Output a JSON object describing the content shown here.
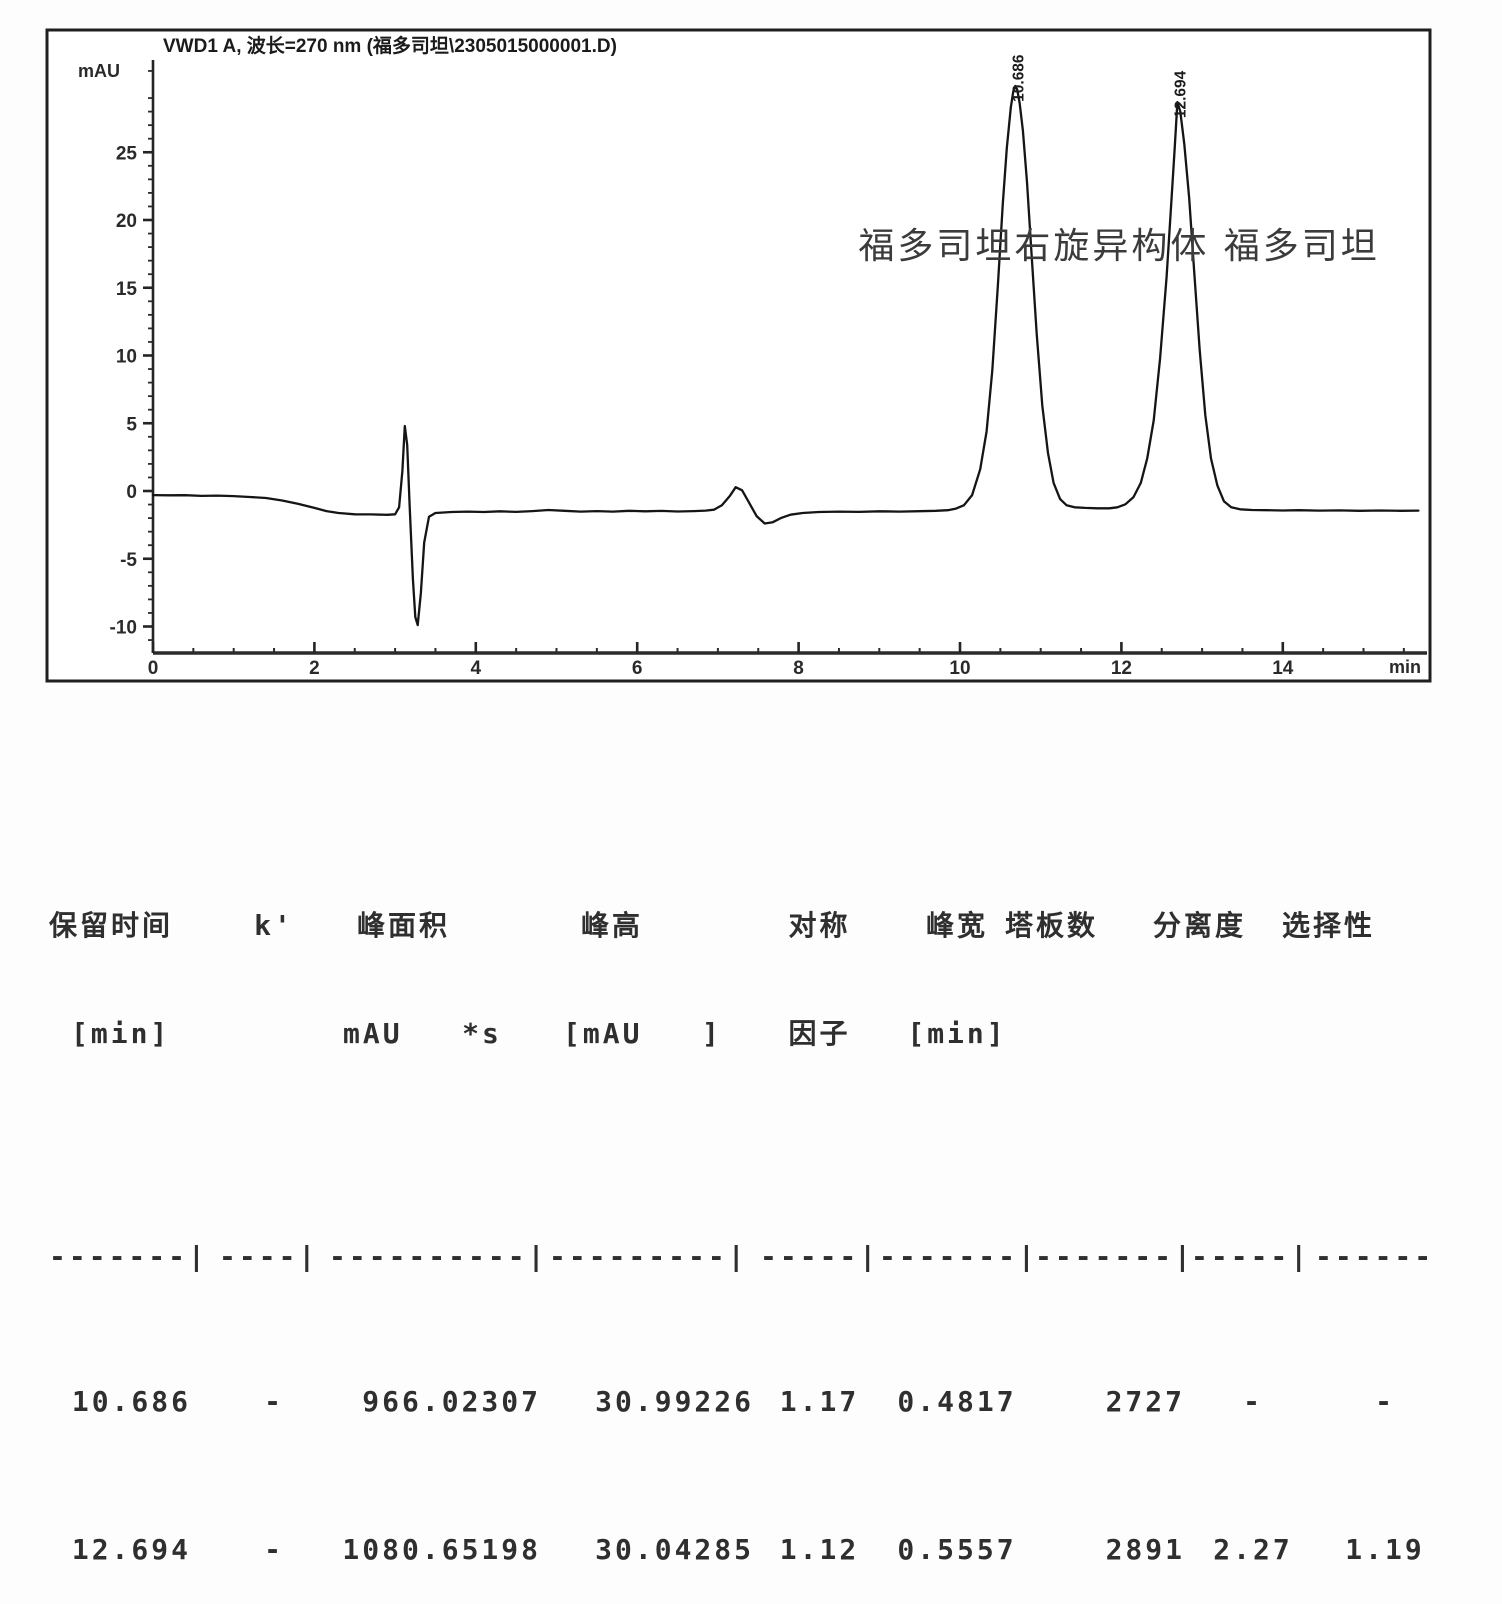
{
  "chart_data": {
    "type": "line",
    "title": "VWD1 A, 波长=270 nm (福多司坦\\2305015000001.D)",
    "ylabel": "mAU",
    "xlabel": "min",
    "xlim": [
      0,
      15.8
    ],
    "ylim": [
      -11.5,
      31.8
    ],
    "x_ticks": [
      0,
      2,
      4,
      6,
      8,
      10,
      12,
      14
    ],
    "y_ticks": [
      -10,
      -5,
      0,
      5,
      10,
      15,
      20,
      25
    ],
    "x_minor_step": 0.5,
    "y_minor_step": 1,
    "grid": "off",
    "annotations": [
      {
        "text": "福多司坦右旋异构体 福多司坦",
        "x": 8.74,
        "y": 17.2
      }
    ],
    "peaks": [
      {
        "label": "10.686",
        "rt": 10.686,
        "apex": 29.9
      },
      {
        "label": "12.694",
        "rt": 12.694,
        "apex": 28.7
      }
    ],
    "trace": [
      [
        0.0,
        -0.3
      ],
      [
        0.2,
        -0.32
      ],
      [
        0.4,
        -0.31
      ],
      [
        0.6,
        -0.36
      ],
      [
        0.8,
        -0.34
      ],
      [
        1.0,
        -0.38
      ],
      [
        1.2,
        -0.44
      ],
      [
        1.4,
        -0.52
      ],
      [
        1.6,
        -0.7
      ],
      [
        1.8,
        -0.95
      ],
      [
        2.0,
        -1.25
      ],
      [
        2.15,
        -1.48
      ],
      [
        2.3,
        -1.62
      ],
      [
        2.5,
        -1.72
      ],
      [
        2.7,
        -1.73
      ],
      [
        2.9,
        -1.76
      ],
      [
        3.0,
        -1.72
      ],
      [
        3.05,
        -1.2
      ],
      [
        3.09,
        1.5
      ],
      [
        3.12,
        4.8
      ],
      [
        3.15,
        3.4
      ],
      [
        3.18,
        -1.0
      ],
      [
        3.22,
        -6.5
      ],
      [
        3.25,
        -9.3
      ],
      [
        3.28,
        -9.9
      ],
      [
        3.32,
        -7.5
      ],
      [
        3.36,
        -3.8
      ],
      [
        3.42,
        -1.9
      ],
      [
        3.5,
        -1.62
      ],
      [
        3.7,
        -1.55
      ],
      [
        3.9,
        -1.52
      ],
      [
        4.1,
        -1.55
      ],
      [
        4.3,
        -1.5
      ],
      [
        4.5,
        -1.54
      ],
      [
        4.7,
        -1.48
      ],
      [
        4.9,
        -1.4
      ],
      [
        5.1,
        -1.46
      ],
      [
        5.3,
        -1.52
      ],
      [
        5.5,
        -1.48
      ],
      [
        5.7,
        -1.52
      ],
      [
        5.9,
        -1.46
      ],
      [
        6.1,
        -1.5
      ],
      [
        6.3,
        -1.47
      ],
      [
        6.5,
        -1.51
      ],
      [
        6.7,
        -1.48
      ],
      [
        6.85,
        -1.45
      ],
      [
        6.95,
        -1.38
      ],
      [
        7.05,
        -1.05
      ],
      [
        7.15,
        -0.35
      ],
      [
        7.22,
        0.28
      ],
      [
        7.3,
        0.05
      ],
      [
        7.38,
        -0.8
      ],
      [
        7.48,
        -1.85
      ],
      [
        7.58,
        -2.4
      ],
      [
        7.68,
        -2.3
      ],
      [
        7.78,
        -2.0
      ],
      [
        7.9,
        -1.75
      ],
      [
        8.05,
        -1.62
      ],
      [
        8.25,
        -1.55
      ],
      [
        8.5,
        -1.52
      ],
      [
        8.75,
        -1.54
      ],
      [
        9.0,
        -1.5
      ],
      [
        9.25,
        -1.52
      ],
      [
        9.5,
        -1.49
      ],
      [
        9.7,
        -1.46
      ],
      [
        9.85,
        -1.42
      ],
      [
        9.95,
        -1.3
      ],
      [
        10.05,
        -1.05
      ],
      [
        10.15,
        -0.3
      ],
      [
        10.25,
        1.6
      ],
      [
        10.33,
        4.4
      ],
      [
        10.4,
        8.9
      ],
      [
        10.47,
        15.2
      ],
      [
        10.53,
        21.2
      ],
      [
        10.58,
        25.3
      ],
      [
        10.63,
        28.3
      ],
      [
        10.661,
        29.5
      ],
      [
        10.686,
        29.9
      ],
      [
        10.71,
        29.6
      ],
      [
        10.74,
        28.6
      ],
      [
        10.78,
        26.6
      ],
      [
        10.83,
        22.8
      ],
      [
        10.89,
        17.2
      ],
      [
        10.95,
        11.6
      ],
      [
        11.02,
        6.3
      ],
      [
        11.09,
        2.8
      ],
      [
        11.16,
        0.6
      ],
      [
        11.24,
        -0.6
      ],
      [
        11.32,
        -1.05
      ],
      [
        11.42,
        -1.2
      ],
      [
        11.55,
        -1.25
      ],
      [
        11.7,
        -1.28
      ],
      [
        11.85,
        -1.28
      ],
      [
        11.95,
        -1.2
      ],
      [
        12.05,
        -0.98
      ],
      [
        12.15,
        -0.45
      ],
      [
        12.24,
        0.6
      ],
      [
        12.32,
        2.4
      ],
      [
        12.4,
        5.2
      ],
      [
        12.48,
        9.8
      ],
      [
        12.56,
        15.8
      ],
      [
        12.62,
        21.4
      ],
      [
        12.66,
        25.3
      ],
      [
        12.694,
        28.7
      ],
      [
        12.73,
        28.0
      ],
      [
        12.78,
        25.6
      ],
      [
        12.84,
        21.6
      ],
      [
        12.9,
        16.4
      ],
      [
        12.97,
        10.4
      ],
      [
        13.04,
        5.6
      ],
      [
        13.11,
        2.4
      ],
      [
        13.19,
        0.4
      ],
      [
        13.27,
        -0.75
      ],
      [
        13.36,
        -1.2
      ],
      [
        13.47,
        -1.35
      ],
      [
        13.62,
        -1.4
      ],
      [
        13.8,
        -1.42
      ],
      [
        14.0,
        -1.44
      ],
      [
        14.2,
        -1.42
      ],
      [
        14.45,
        -1.45
      ],
      [
        14.7,
        -1.43
      ],
      [
        14.95,
        -1.46
      ],
      [
        15.2,
        -1.44
      ],
      [
        15.45,
        -1.46
      ],
      [
        15.68,
        -1.45
      ]
    ]
  },
  "table": {
    "headers": [
      {
        "line1": "保留时间",
        "line2": "[min]"
      },
      {
        "line1": "k'",
        "line2": ""
      },
      {
        "line1": "峰面积",
        "line2": "mAU   *s"
      },
      {
        "line1": "峰高",
        "line2": "[mAU   ]"
      },
      {
        "line1": "对称",
        "line2": "因子"
      },
      {
        "line1": "峰宽",
        "line2": "[min]"
      },
      {
        "line1": "塔板数",
        "line2": ""
      },
      {
        "line1": "分离度",
        "line2": ""
      },
      {
        "line1": "选择性",
        "line2": ""
      }
    ],
    "separator": [
      "-------|",
      "----|",
      "----------|",
      "---------|",
      "-----|",
      "-------|",
      "-------|",
      "-----|",
      "------"
    ],
    "rows": [
      [
        "10.686",
        "-",
        "966.02307",
        "30.99226",
        "1.17",
        "0.4817",
        "2727",
        "-",
        "-"
      ],
      [
        "12.694",
        "-",
        "1080.65198",
        "30.04285",
        "1.12",
        "0.5557",
        "2891",
        "2.27",
        "1.19"
      ]
    ]
  }
}
